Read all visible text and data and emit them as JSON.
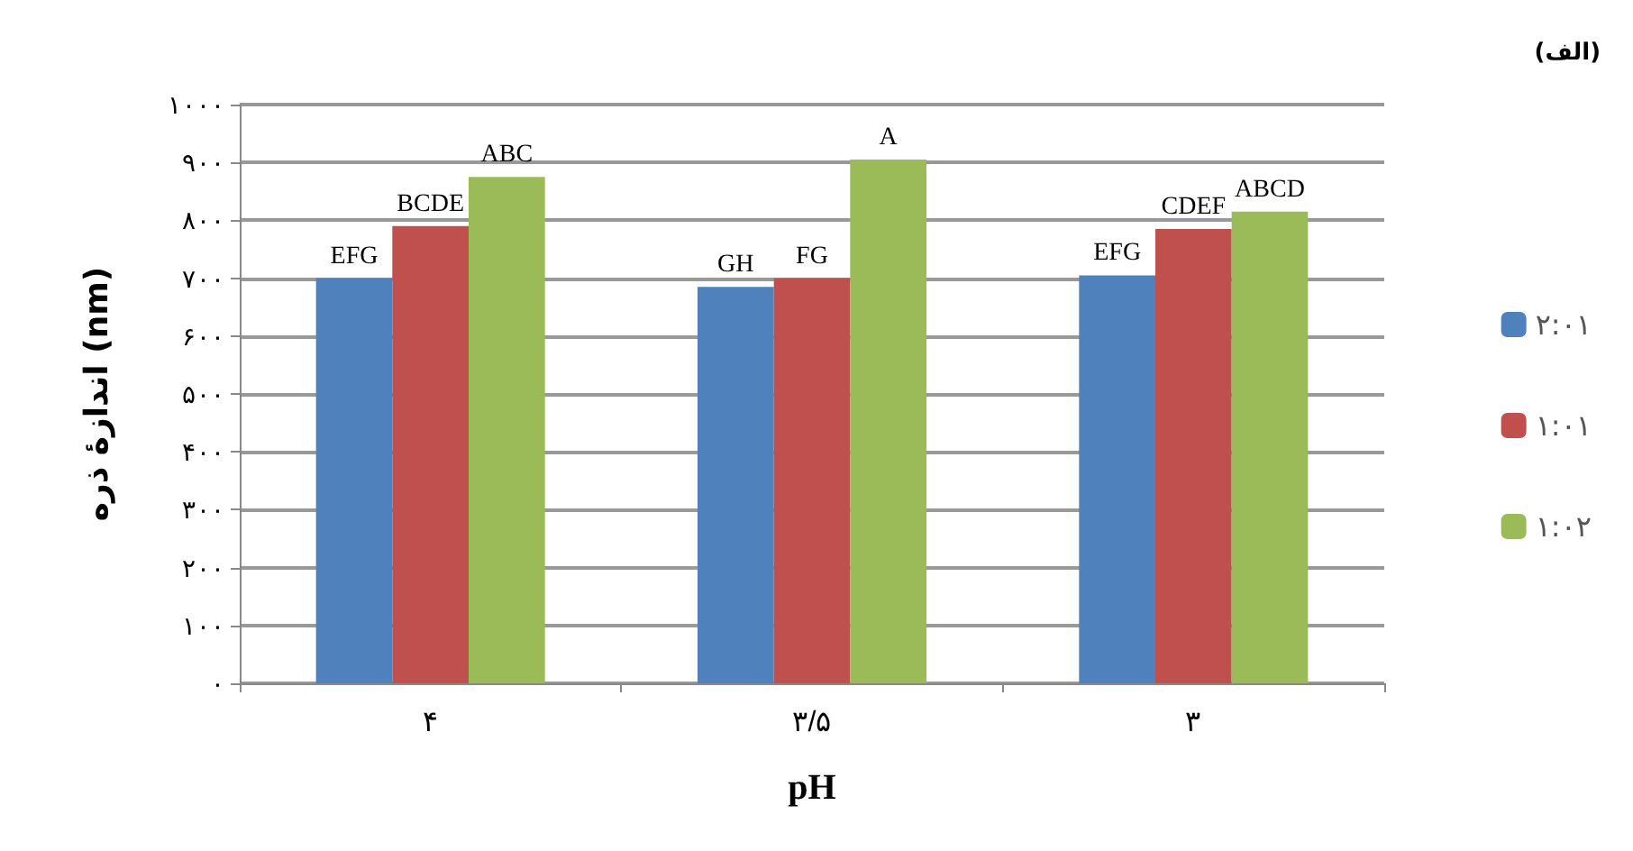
{
  "chart_data": {
    "type": "bar",
    "xlabel": "pH",
    "ylabel": "اندازۀ ذره (nm)",
    "annotations": [
      "(الف)"
    ],
    "categories": [
      "۴",
      "۳/۵",
      "۳"
    ],
    "series": [
      {
        "name": "۲:۰۱",
        "color": "#4f81bd",
        "values": [
          700,
          685,
          705
        ],
        "value_labels": [
          "EFG",
          "GH",
          "EFG"
        ]
      },
      {
        "name": "۱:۰۱",
        "color": "#c0504d",
        "values": [
          790,
          700,
          785
        ],
        "value_labels": [
          "BCDE",
          "FG",
          "CDEF"
        ]
      },
      {
        "name": "۱:۰۲",
        "color": "#9bbb59",
        "values": [
          875,
          905,
          815
        ],
        "value_labels": [
          "ABC",
          "A",
          "ABCD"
        ]
      }
    ],
    "ylim": [
      0,
      1000
    ],
    "yticks": [
      {
        "value": 0,
        "label": "۰"
      },
      {
        "value": 100,
        "label": "۱۰۰"
      },
      {
        "value": 200,
        "label": "۲۰۰"
      },
      {
        "value": 300,
        "label": "۳۰۰"
      },
      {
        "value": 400,
        "label": "۴۰۰"
      },
      {
        "value": 500,
        "label": "۵۰۰"
      },
      {
        "value": 600,
        "label": "۶۰۰"
      },
      {
        "value": 700,
        "label": "۷۰۰"
      },
      {
        "value": 800,
        "label": "۸۰۰"
      },
      {
        "value": 900,
        "label": "۹۰۰"
      },
      {
        "value": 1000,
        "label": "۱۰۰۰"
      }
    ],
    "grid": "y",
    "legend": "right"
  }
}
